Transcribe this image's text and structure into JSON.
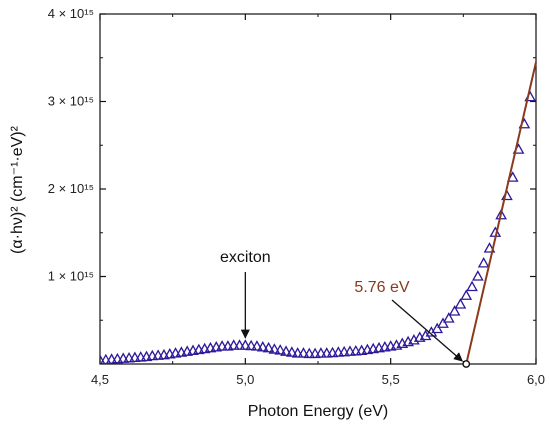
{
  "chart_data": {
    "type": "scatter",
    "title": "",
    "xlabel": "Photon Energy (eV)",
    "ylabel": "(α·hν)² (cm⁻¹·eV)²",
    "xlim": [
      4.5,
      6.0
    ],
    "ylim": [
      0,
      4.0
    ],
    "y_multiplier_label": "× 10¹⁵",
    "grid": false,
    "x_ticks": [
      4.5,
      5.0,
      5.5,
      6.0
    ],
    "x_tick_labels": [
      "4,5",
      "5,0",
      "5,5",
      "6,0"
    ],
    "y_ticks": [
      1,
      2,
      3,
      4
    ],
    "y_tick_labels": [
      "1 × 10¹⁵",
      "2 × 10¹⁵",
      "3 × 10¹⁵",
      "4 × 10¹⁵"
    ],
    "series": [
      {
        "marker": "triangle",
        "color": "#2d1a9a",
        "x": [
          4.5,
          4.52,
          4.54,
          4.56,
          4.58,
          4.6,
          4.62,
          4.64,
          4.66,
          4.68,
          4.7,
          4.72,
          4.74,
          4.76,
          4.78,
          4.8,
          4.82,
          4.84,
          4.86,
          4.88,
          4.9,
          4.92,
          4.94,
          4.96,
          4.98,
          5.0,
          5.02,
          5.04,
          5.06,
          5.08,
          5.1,
          5.12,
          5.14,
          5.16,
          5.18,
          5.2,
          5.22,
          5.24,
          5.26,
          5.28,
          5.3,
          5.32,
          5.34,
          5.36,
          5.38,
          5.4,
          5.42,
          5.44,
          5.46,
          5.48,
          5.5,
          5.52,
          5.54,
          5.56,
          5.58,
          5.6,
          5.62,
          5.64,
          5.66,
          5.68,
          5.7,
          5.72,
          5.74,
          5.76,
          5.78,
          5.8,
          5.82,
          5.84,
          5.86,
          5.88,
          5.9,
          5.92,
          5.94,
          5.96,
          5.98
        ],
        "y": [
          0.04,
          0.045,
          0.05,
          0.055,
          0.06,
          0.065,
          0.07,
          0.075,
          0.08,
          0.09,
          0.095,
          0.1,
          0.11,
          0.12,
          0.13,
          0.14,
          0.15,
          0.16,
          0.17,
          0.18,
          0.19,
          0.2,
          0.2,
          0.21,
          0.21,
          0.21,
          0.205,
          0.2,
          0.19,
          0.18,
          0.165,
          0.155,
          0.14,
          0.13,
          0.12,
          0.12,
          0.115,
          0.115,
          0.12,
          0.12,
          0.125,
          0.13,
          0.135,
          0.14,
          0.145,
          0.15,
          0.16,
          0.17,
          0.18,
          0.19,
          0.2,
          0.21,
          0.23,
          0.25,
          0.27,
          0.3,
          0.32,
          0.36,
          0.4,
          0.46,
          0.52,
          0.6,
          0.68,
          0.78,
          0.88,
          1.0,
          1.15,
          1.32,
          1.5,
          1.7,
          1.92,
          2.13,
          2.45,
          2.74,
          3.05
        ]
      }
    ],
    "fit_line": {
      "color": "#8b3a1e",
      "x": [
        5.76,
        6.0
      ],
      "y": [
        0.0,
        3.45
      ]
    },
    "annotations": [
      {
        "text": "exciton",
        "target_x": 5.0,
        "target_y": 0.23,
        "color": "#111111"
      },
      {
        "text": "5.76 eV",
        "target_x": 5.76,
        "target_y": 0.0,
        "color": "#8b3a1e"
      }
    ],
    "marker_open_point": {
      "x": 5.76,
      "y": 0.0
    }
  }
}
